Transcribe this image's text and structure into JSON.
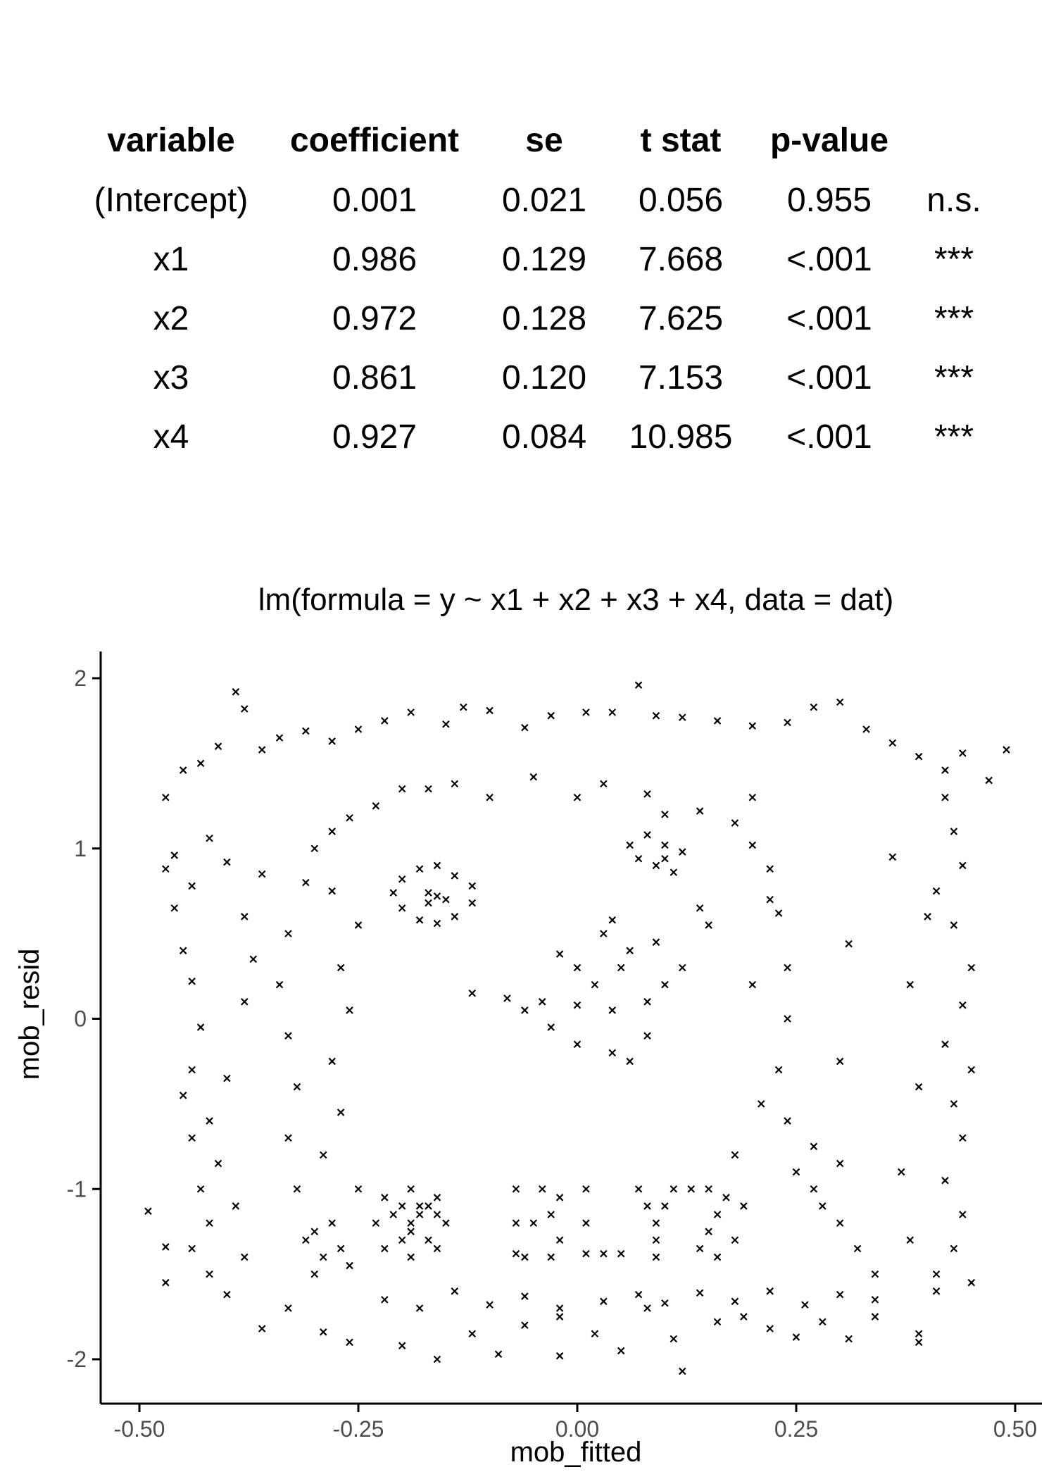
{
  "table": {
    "headers": [
      "variable",
      "coefficient",
      "se",
      "t stat",
      "p-value",
      ""
    ],
    "rows": [
      [
        "(Intercept)",
        "0.001",
        "0.021",
        "0.056",
        "0.955",
        "n.s."
      ],
      [
        "x1",
        "0.986",
        "0.129",
        "7.668",
        "<.001",
        "***"
      ],
      [
        "x2",
        "0.972",
        "0.128",
        "7.625",
        "<.001",
        "***"
      ],
      [
        "x3",
        "0.861",
        "0.120",
        "7.153",
        "<.001",
        "***"
      ],
      [
        "x4",
        "0.927",
        "0.084",
        "10.985",
        "<.001",
        "***"
      ]
    ]
  },
  "chart_data": {
    "type": "scatter",
    "title": "lm(formula = y ~ x1 + x2 + x3 + x4, data = dat)",
    "xlabel": "mob_fitted",
    "ylabel": "mob_resid",
    "xlim": [
      -0.5,
      0.5
    ],
    "ylim": [
      -2.1,
      2.1
    ],
    "x_ticks": [
      -0.5,
      -0.25,
      0.0,
      0.25,
      0.5
    ],
    "x_tick_labels": [
      "-0.50",
      "-0.25",
      "0.00",
      "0.25",
      "0.50"
    ],
    "y_ticks": [
      -2,
      -1,
      0,
      1,
      2
    ],
    "y_tick_labels": [
      "-2",
      "-1",
      "0",
      "1",
      "2"
    ],
    "marker": "x",
    "grid": false,
    "color": "#000000",
    "series": [
      {
        "points": [
          [
            -0.39,
            1.92
          ],
          [
            -0.38,
            1.82
          ],
          [
            -0.45,
            1.46
          ],
          [
            -0.43,
            1.5
          ],
          [
            -0.41,
            1.6
          ],
          [
            -0.36,
            1.58
          ],
          [
            -0.34,
            1.65
          ],
          [
            -0.31,
            1.69
          ],
          [
            -0.28,
            1.63
          ],
          [
            -0.25,
            1.7
          ],
          [
            -0.22,
            1.75
          ],
          [
            -0.19,
            1.8
          ],
          [
            -0.15,
            1.73
          ],
          [
            -0.13,
            1.83
          ],
          [
            -0.1,
            1.81
          ],
          [
            -0.06,
            1.71
          ],
          [
            -0.03,
            1.78
          ],
          [
            0.01,
            1.8
          ],
          [
            0.04,
            1.8
          ],
          [
            0.07,
            1.96
          ],
          [
            0.09,
            1.78
          ],
          [
            0.12,
            1.77
          ],
          [
            0.16,
            1.75
          ],
          [
            0.2,
            1.72
          ],
          [
            0.24,
            1.74
          ],
          [
            0.27,
            1.83
          ],
          [
            0.3,
            1.86
          ],
          [
            0.33,
            1.7
          ],
          [
            0.36,
            1.62
          ],
          [
            0.39,
            1.54
          ],
          [
            0.42,
            1.46
          ],
          [
            0.44,
            1.56
          ],
          [
            0.49,
            1.58
          ],
          [
            0.47,
            1.4
          ],
          [
            -0.47,
            1.3
          ],
          [
            -0.46,
            0.96
          ],
          [
            -0.47,
            0.88
          ],
          [
            -0.46,
            0.65
          ],
          [
            -0.44,
            0.78
          ],
          [
            -0.42,
            1.06
          ],
          [
            -0.4,
            0.92
          ],
          [
            -0.45,
            0.4
          ],
          [
            -0.44,
            0.22
          ],
          [
            -0.43,
            -0.05
          ],
          [
            -0.44,
            -0.3
          ],
          [
            -0.45,
            -0.45
          ],
          [
            -0.44,
            -0.7
          ],
          [
            -0.42,
            -0.6
          ],
          [
            -0.41,
            -0.85
          ],
          [
            -0.43,
            -1.0
          ],
          [
            -0.42,
            -1.2
          ],
          [
            -0.44,
            -1.35
          ],
          [
            -0.42,
            -1.5
          ],
          [
            -0.4,
            -1.62
          ],
          [
            -0.38,
            -1.4
          ],
          [
            -0.39,
            -1.1
          ],
          [
            -0.4,
            -0.35
          ],
          [
            -0.38,
            0.1
          ],
          [
            -0.37,
            0.35
          ],
          [
            -0.38,
            0.6
          ],
          [
            -0.36,
            0.85
          ],
          [
            0.42,
            1.3
          ],
          [
            0.43,
            1.1
          ],
          [
            0.44,
            0.9
          ],
          [
            0.41,
            0.75
          ],
          [
            0.43,
            0.55
          ],
          [
            0.45,
            0.3
          ],
          [
            0.44,
            0.08
          ],
          [
            0.42,
            -0.15
          ],
          [
            0.45,
            -0.3
          ],
          [
            0.43,
            -0.5
          ],
          [
            0.44,
            -0.7
          ],
          [
            0.42,
            -0.95
          ],
          [
            0.44,
            -1.15
          ],
          [
            0.43,
            -1.35
          ],
          [
            0.45,
            -1.55
          ],
          [
            0.41,
            -1.6
          ],
          [
            0.39,
            -1.85
          ],
          [
            0.38,
            -1.3
          ],
          [
            0.37,
            -0.9
          ],
          [
            0.39,
            -0.4
          ],
          [
            0.38,
            0.2
          ],
          [
            0.4,
            0.6
          ],
          [
            0.36,
            0.95
          ],
          [
            0.31,
            0.44
          ],
          [
            0.3,
            -0.25
          ],
          [
            0.3,
            -0.85
          ],
          [
            -0.49,
            -1.13
          ],
          [
            -0.47,
            -1.55
          ],
          [
            -0.47,
            -1.34
          ],
          [
            -0.36,
            -1.82
          ],
          [
            -0.33,
            -1.7
          ],
          [
            -0.29,
            -1.84
          ],
          [
            -0.26,
            -1.9
          ],
          [
            -0.2,
            -1.92
          ],
          [
            -0.16,
            -2.0
          ],
          [
            -0.12,
            -1.85
          ],
          [
            -0.09,
            -1.97
          ],
          [
            -0.06,
            -1.8
          ],
          [
            -0.02,
            -1.75
          ],
          [
            -0.02,
            -1.98
          ],
          [
            0.02,
            -1.85
          ],
          [
            0.05,
            -1.95
          ],
          [
            0.08,
            -1.7
          ],
          [
            0.11,
            -1.88
          ],
          [
            0.12,
            -2.07
          ],
          [
            0.16,
            -1.78
          ],
          [
            0.19,
            -1.75
          ],
          [
            0.22,
            -1.82
          ],
          [
            0.25,
            -1.87
          ],
          [
            0.28,
            -1.78
          ],
          [
            0.31,
            -1.88
          ],
          [
            0.34,
            -1.75
          ],
          [
            0.39,
            -1.9
          ],
          [
            0.41,
            -1.5
          ],
          [
            -0.22,
            -1.65
          ],
          [
            -0.18,
            -1.7
          ],
          [
            -0.14,
            -1.6
          ],
          [
            -0.1,
            -1.68
          ],
          [
            -0.06,
            -1.63
          ],
          [
            -0.02,
            -1.7
          ],
          [
            0.03,
            -1.66
          ],
          [
            0.07,
            -1.62
          ],
          [
            0.1,
            -1.67
          ],
          [
            0.14,
            -1.61
          ],
          [
            0.18,
            -1.66
          ],
          [
            0.22,
            -1.6
          ],
          [
            0.26,
            -1.68
          ],
          [
            0.3,
            -1.62
          ],
          [
            0.34,
            -1.65
          ],
          [
            -0.25,
            -1.0
          ],
          [
            -0.29,
            -0.8
          ],
          [
            -0.27,
            -0.55
          ],
          [
            -0.28,
            -0.25
          ],
          [
            -0.26,
            0.05
          ],
          [
            -0.27,
            0.3
          ],
          [
            -0.25,
            0.55
          ],
          [
            -0.28,
            0.75
          ],
          [
            -0.2,
            1.35
          ],
          [
            -0.1,
            1.3
          ],
          [
            0.0,
            1.3
          ],
          [
            0.1,
            1.2
          ],
          [
            0.2,
            1.3
          ],
          [
            0.22,
            0.7
          ],
          [
            0.2,
            0.2
          ],
          [
            0.21,
            -0.5
          ],
          [
            0.18,
            -0.8
          ],
          [
            0.27,
            -0.75
          ],
          [
            -0.2,
            0.82
          ],
          [
            -0.18,
            0.88
          ],
          [
            -0.16,
            0.9
          ],
          [
            -0.14,
            0.84
          ],
          [
            -0.12,
            0.78
          ],
          [
            -0.12,
            0.68
          ],
          [
            -0.14,
            0.6
          ],
          [
            -0.16,
            0.56
          ],
          [
            -0.18,
            0.58
          ],
          [
            -0.2,
            0.65
          ],
          [
            -0.21,
            0.74
          ],
          [
            -0.17,
            0.74
          ],
          [
            -0.16,
            0.72
          ],
          [
            -0.15,
            0.7
          ],
          [
            -0.17,
            0.68
          ],
          [
            0.08,
            1.08
          ],
          [
            0.1,
            1.02
          ],
          [
            0.12,
            0.98
          ],
          [
            0.09,
            0.9
          ],
          [
            0.07,
            0.94
          ],
          [
            0.11,
            0.86
          ],
          [
            0.06,
            1.02
          ],
          [
            0.1,
            0.94
          ],
          [
            -0.12,
            0.15
          ],
          [
            -0.08,
            0.12
          ],
          [
            -0.04,
            0.1
          ],
          [
            0.0,
            0.08
          ],
          [
            0.04,
            0.05
          ],
          [
            0.08,
            0.1
          ],
          [
            0.05,
            0.3
          ],
          [
            0.03,
            0.5
          ],
          [
            0.04,
            0.58
          ],
          [
            0.06,
            0.4
          ],
          [
            -0.03,
            -0.05
          ],
          [
            0.0,
            -0.15
          ],
          [
            0.04,
            -0.2
          ],
          [
            0.06,
            -0.25
          ],
          [
            0.02,
            0.2
          ],
          [
            -0.06,
            0.05
          ],
          [
            0.08,
            -0.1
          ],
          [
            0.1,
            0.2
          ],
          [
            0.12,
            0.3
          ],
          [
            0.09,
            0.45
          ],
          [
            0.15,
            0.55
          ],
          [
            0.14,
            0.65
          ],
          [
            0.0,
            0.3
          ],
          [
            -0.02,
            0.38
          ],
          [
            -0.33,
            0.5
          ],
          [
            -0.34,
            0.2
          ],
          [
            -0.33,
            -0.1
          ],
          [
            -0.32,
            -0.4
          ],
          [
            -0.33,
            -0.7
          ],
          [
            -0.32,
            -1.0
          ],
          [
            -0.31,
            -1.3
          ],
          [
            -0.3,
            -1.5
          ],
          [
            -0.31,
            0.8
          ],
          [
            -0.3,
            1.0
          ],
          [
            -0.28,
            1.1
          ],
          [
            -0.26,
            1.18
          ],
          [
            -0.23,
            1.25
          ],
          [
            -0.17,
            1.35
          ],
          [
            -0.14,
            1.38
          ],
          [
            -0.05,
            1.42
          ],
          [
            0.03,
            1.38
          ],
          [
            0.08,
            1.32
          ],
          [
            0.14,
            1.22
          ],
          [
            0.18,
            1.15
          ],
          [
            0.2,
            1.02
          ],
          [
            0.22,
            0.88
          ],
          [
            0.23,
            0.62
          ],
          [
            0.24,
            0.3
          ],
          [
            0.24,
            0.0
          ],
          [
            0.23,
            -0.3
          ],
          [
            0.24,
            -0.6
          ],
          [
            0.25,
            -0.9
          ],
          [
            0.27,
            -1.0
          ],
          [
            0.28,
            -1.1
          ],
          [
            0.3,
            -1.2
          ],
          [
            0.32,
            -1.35
          ],
          [
            0.34,
            -1.5
          ],
          [
            -0.28,
            -1.2
          ],
          [
            -0.27,
            -1.35
          ],
          [
            -0.26,
            -1.45
          ],
          [
            -0.29,
            -1.4
          ],
          [
            -0.3,
            -1.25
          ],
          [
            -0.22,
            -1.05
          ],
          [
            -0.23,
            -1.2
          ],
          [
            -0.22,
            -1.35
          ],
          [
            -0.19,
            -1.4
          ],
          [
            -0.16,
            -1.35
          ],
          [
            -0.15,
            -1.2
          ],
          [
            -0.16,
            -1.05
          ],
          [
            -0.19,
            -1.0
          ],
          [
            -0.19,
            -1.2
          ],
          [
            -0.19,
            -1.25
          ],
          [
            -0.18,
            -1.15
          ],
          [
            -0.17,
            -1.3
          ],
          [
            -0.18,
            -1.1
          ],
          [
            -0.2,
            -1.1
          ],
          [
            -0.17,
            -1.1
          ],
          [
            -0.16,
            -1.15
          ],
          [
            -0.2,
            -1.3
          ],
          [
            -0.21,
            -1.15
          ],
          [
            -0.07,
            -1.0
          ],
          [
            -0.07,
            -1.2
          ],
          [
            -0.07,
            -1.38
          ],
          [
            -0.04,
            -1.0
          ],
          [
            -0.02,
            -1.05
          ],
          [
            -0.03,
            -1.15
          ],
          [
            -0.05,
            -1.2
          ],
          [
            -0.02,
            -1.3
          ],
          [
            -0.03,
            -1.4
          ],
          [
            -0.06,
            -1.4
          ],
          [
            0.01,
            -1.0
          ],
          [
            0.01,
            -1.2
          ],
          [
            0.01,
            -1.38
          ],
          [
            0.03,
            -1.38
          ],
          [
            0.05,
            -1.38
          ],
          [
            0.07,
            -1.0
          ],
          [
            0.08,
            -1.1
          ],
          [
            0.09,
            -1.2
          ],
          [
            0.1,
            -1.1
          ],
          [
            0.11,
            -1.0
          ],
          [
            0.09,
            -1.3
          ],
          [
            0.09,
            -1.4
          ],
          [
            0.13,
            -1.0
          ],
          [
            0.15,
            -1.0
          ],
          [
            0.17,
            -1.05
          ],
          [
            0.16,
            -1.15
          ],
          [
            0.15,
            -1.25
          ],
          [
            0.14,
            -1.35
          ],
          [
            0.16,
            -1.4
          ],
          [
            0.18,
            -1.3
          ],
          [
            0.19,
            -1.1
          ]
        ]
      }
    ]
  }
}
